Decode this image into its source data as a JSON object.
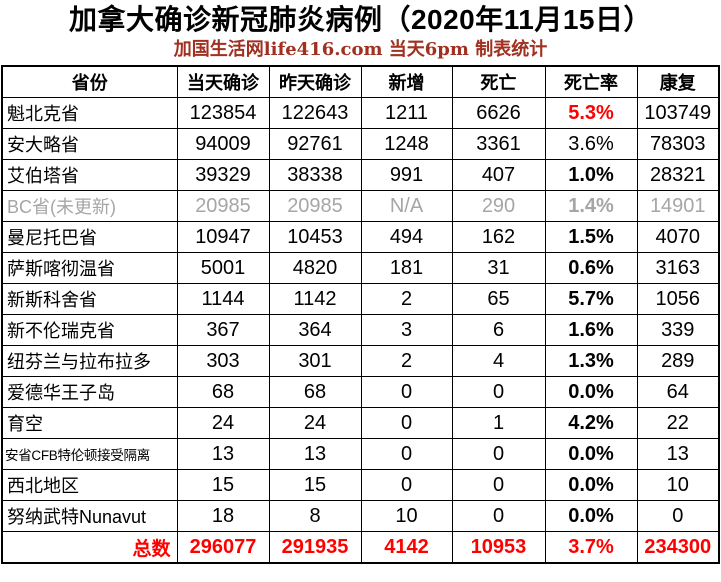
{
  "styles": {
    "accent_red": "#FF0000",
    "muted_gray": "#A6A6A6",
    "subtitle_color": "#A03020",
    "border_color": "#000000"
  },
  "chart_data": {
    "type": "table",
    "title": "加拿大确诊新冠肺炎病例（2020年11月15日）",
    "subtitle": "加国生活网life416.com 当天6pm 制表统计",
    "columns": [
      "省份",
      "当天确诊",
      "昨天确诊",
      "新增",
      "死亡",
      "死亡率",
      "康复"
    ],
    "rows": [
      {
        "province": "魁北克省",
        "today": "123854",
        "yesterday": "122643",
        "added": "1211",
        "deaths": "6626",
        "death_rate": "5.3%",
        "recovered": "103749",
        "death_rate_style": "red-bold",
        "row_style": "normal"
      },
      {
        "province": "安大略省",
        "today": "94009",
        "yesterday": "92761",
        "added": "1248",
        "deaths": "3361",
        "death_rate": "3.6%",
        "recovered": "78303",
        "death_rate_style": "normal",
        "row_style": "normal"
      },
      {
        "province": "艾伯塔省",
        "today": "39329",
        "yesterday": "38338",
        "added": "991",
        "deaths": "407",
        "death_rate": "1.0%",
        "recovered": "28321",
        "death_rate_style": "bold",
        "row_style": "normal"
      },
      {
        "province": "BC省(未更新)",
        "today": "20985",
        "yesterday": "20985",
        "added": "N/A",
        "deaths": "290",
        "death_rate": "1.4%",
        "recovered": "14901",
        "death_rate_style": "bold",
        "row_style": "muted"
      },
      {
        "province": "曼尼托巴省",
        "today": "10947",
        "yesterday": "10453",
        "added": "494",
        "deaths": "162",
        "death_rate": "1.5%",
        "recovered": "4070",
        "death_rate_style": "bold",
        "row_style": "normal"
      },
      {
        "province": "萨斯喀彻温省",
        "today": "5001",
        "yesterday": "4820",
        "added": "181",
        "deaths": "31",
        "death_rate": "0.6%",
        "recovered": "3163",
        "death_rate_style": "bold",
        "row_style": "normal"
      },
      {
        "province": "新斯科舍省",
        "today": "1144",
        "yesterday": "1142",
        "added": "2",
        "deaths": "65",
        "death_rate": "5.7%",
        "recovered": "1056",
        "death_rate_style": "bold",
        "row_style": "normal"
      },
      {
        "province": "新不伦瑞克省",
        "today": "367",
        "yesterday": "364",
        "added": "3",
        "deaths": "6",
        "death_rate": "1.6%",
        "recovered": "339",
        "death_rate_style": "bold",
        "row_style": "normal"
      },
      {
        "province": "纽芬兰与拉布拉多",
        "today": "303",
        "yesterday": "301",
        "added": "2",
        "deaths": "4",
        "death_rate": "1.3%",
        "recovered": "289",
        "death_rate_style": "bold",
        "row_style": "normal"
      },
      {
        "province": "爱德华王子岛",
        "today": "68",
        "yesterday": "68",
        "added": "0",
        "deaths": "0",
        "death_rate": "0.0%",
        "recovered": "64",
        "death_rate_style": "bold",
        "row_style": "normal"
      },
      {
        "province": "育空",
        "today": "24",
        "yesterday": "24",
        "added": "0",
        "deaths": "1",
        "death_rate": "4.2%",
        "recovered": "22",
        "death_rate_style": "bold",
        "row_style": "normal"
      },
      {
        "province": "安省CFB特伦顿接受隔离",
        "today": "13",
        "yesterday": "13",
        "added": "0",
        "deaths": "0",
        "death_rate": "0.0%",
        "recovered": "13",
        "death_rate_style": "bold",
        "row_style": "small-name"
      },
      {
        "province": "西北地区",
        "today": "15",
        "yesterday": "15",
        "added": "0",
        "deaths": "0",
        "death_rate": "0.0%",
        "recovered": "10",
        "death_rate_style": "bold",
        "row_style": "normal"
      },
      {
        "province": "努纳武特Nunavut",
        "today": "18",
        "yesterday": "8",
        "added": "10",
        "deaths": "0",
        "death_rate": "0.0%",
        "recovered": "0",
        "death_rate_style": "bold",
        "row_style": "normal"
      }
    ],
    "total_row": {
      "label": "总数",
      "today": "296077",
      "yesterday": "291935",
      "added": "4142",
      "deaths": "10953",
      "death_rate": "3.7%",
      "recovered": "234300"
    }
  }
}
